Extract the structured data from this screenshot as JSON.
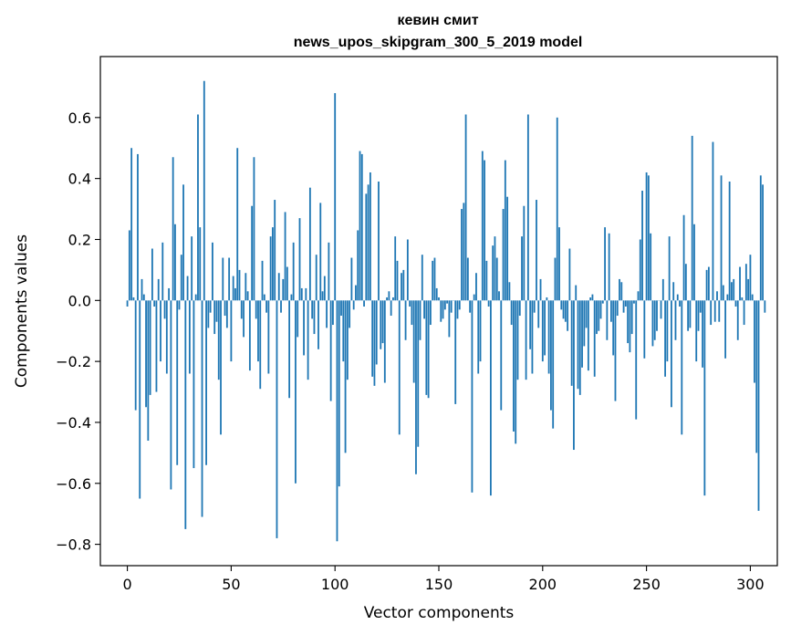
{
  "chart_data": {
    "type": "bar",
    "title": "кевин смит",
    "subtitle": "news_upos_skipgram_300_5_2019 model",
    "xlabel": "Vector components",
    "ylabel": "Components values",
    "xlim": [
      -13,
      313
    ],
    "ylim": [
      -0.87,
      0.8
    ],
    "xticks": [
      0,
      50,
      100,
      150,
      200,
      250,
      300
    ],
    "xtick_labels": [
      "0",
      "50",
      "100",
      "150",
      "200",
      "250",
      "300"
    ],
    "yticks": [
      -0.8,
      -0.6,
      -0.4,
      -0.2,
      0.0,
      0.2,
      0.4,
      0.6
    ],
    "ytick_labels": [
      "−0.8",
      "−0.6",
      "−0.4",
      "−0.2",
      "0.0",
      "0.2",
      "0.4",
      "0.6"
    ],
    "grid": false,
    "bar_color": "#1f77b4",
    "values": [
      -0.02,
      0.23,
      0.5,
      0.01,
      -0.36,
      0.48,
      -0.65,
      0.07,
      0.02,
      -0.35,
      -0.46,
      -0.31,
      0.17,
      -0.02,
      -0.3,
      0.07,
      -0.2,
      0.19,
      -0.06,
      -0.24,
      0.04,
      -0.62,
      0.47,
      0.25,
      -0.54,
      -0.03,
      0.15,
      0.38,
      -0.75,
      0.08,
      -0.24,
      0.21,
      -0.55,
      0.02,
      0.61,
      0.24,
      -0.71,
      0.72,
      -0.54,
      -0.09,
      -0.04,
      0.19,
      -0.11,
      -0.07,
      -0.26,
      -0.44,
      0.14,
      -0.05,
      -0.09,
      0.14,
      -0.2,
      0.08,
      0.04,
      0.5,
      0.1,
      -0.06,
      -0.12,
      0.09,
      0.03,
      -0.23,
      0.31,
      0.47,
      -0.06,
      -0.2,
      -0.29,
      0.13,
      0.02,
      -0.04,
      -0.24,
      0.21,
      0.24,
      0.33,
      -0.78,
      0.09,
      -0.04,
      0.07,
      0.29,
      0.11,
      -0.32,
      0.02,
      0.19,
      -0.6,
      -0.12,
      0.27,
      0.04,
      -0.18,
      0.04,
      -0.26,
      0.37,
      -0.06,
      -0.11,
      0.15,
      -0.16,
      0.32,
      0.03,
      0.08,
      -0.09,
      0.19,
      -0.33,
      -0.08,
      0.68,
      -0.79,
      -0.61,
      -0.05,
      -0.2,
      -0.5,
      -0.26,
      -0.09,
      0.14,
      -0.03,
      0.05,
      0.23,
      0.49,
      0.48,
      -0.02,
      0.35,
      0.38,
      0.42,
      -0.25,
      -0.28,
      -0.21,
      0.39,
      -0.16,
      -0.14,
      -0.27,
      0.01,
      0.03,
      -0.05,
      0.01,
      0.21,
      0.13,
      -0.44,
      0.09,
      0.1,
      -0.13,
      0.2,
      -0.02,
      -0.08,
      -0.27,
      -0.57,
      -0.48,
      -0.13,
      0.15,
      -0.06,
      -0.31,
      -0.32,
      -0.08,
      0.13,
      0.14,
      0.04,
      0.01,
      -0.07,
      -0.06,
      -0.03,
      -0.01,
      -0.12,
      -0.04,
      0.0,
      -0.34,
      -0.06,
      -0.03,
      0.3,
      0.32,
      0.61,
      0.14,
      -0.04,
      -0.63,
      0.02,
      0.09,
      -0.24,
      -0.2,
      0.49,
      0.46,
      0.13,
      -0.02,
      -0.64,
      0.18,
      0.21,
      0.14,
      0.03,
      -0.36,
      0.3,
      0.46,
      0.34,
      0.06,
      -0.08,
      -0.43,
      -0.47,
      -0.26,
      -0.05,
      0.21,
      0.31,
      -0.26,
      0.61,
      -0.16,
      -0.24,
      -0.04,
      0.33,
      -0.09,
      0.07,
      -0.2,
      -0.18,
      0.01,
      -0.24,
      -0.36,
      -0.42,
      0.14,
      0.6,
      0.24,
      -0.03,
      -0.06,
      -0.07,
      -0.1,
      0.17,
      -0.28,
      -0.49,
      0.05,
      -0.29,
      -0.31,
      -0.22,
      -0.15,
      -0.09,
      -0.23,
      0.01,
      0.02,
      -0.25,
      -0.11,
      -0.1,
      -0.06,
      -0.01,
      0.24,
      -0.13,
      0.22,
      -0.07,
      -0.18,
      -0.33,
      -0.05,
      0.07,
      0.06,
      -0.04,
      -0.02,
      -0.14,
      -0.17,
      -0.11,
      -0.01,
      -0.39,
      0.03,
      0.2,
      0.36,
      -0.19,
      0.42,
      0.41,
      0.22,
      -0.15,
      -0.13,
      -0.1,
      0.0,
      -0.06,
      0.07,
      -0.25,
      -0.2,
      0.21,
      -0.35,
      0.06,
      -0.13,
      0.02,
      -0.02,
      -0.44,
      0.28,
      0.12,
      -0.1,
      -0.09,
      0.54,
      0.25,
      -0.2,
      -0.1,
      -0.04,
      -0.22,
      -0.64,
      0.1,
      0.11,
      -0.08,
      0.52,
      -0.07,
      0.03,
      -0.07,
      0.41,
      0.05,
      -0.19,
      0.02,
      0.39,
      0.06,
      0.07,
      -0.02,
      -0.13,
      0.11,
      0.01,
      -0.08,
      0.12,
      0.07,
      0.15,
      0.02,
      -0.27,
      -0.5,
      -0.69,
      0.41,
      0.38,
      -0.04
    ]
  }
}
